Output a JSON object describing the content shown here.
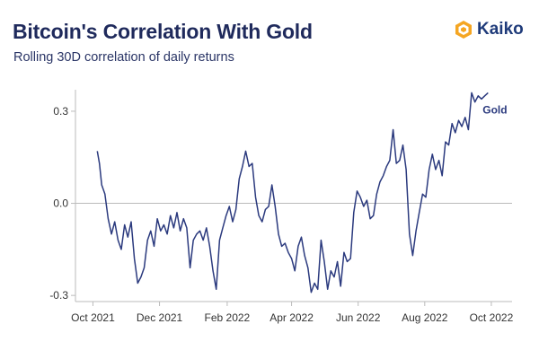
{
  "header": {
    "title": "Bitcoin's Correlation With Gold",
    "subtitle": "Rolling 30D correlation of daily returns"
  },
  "brand": {
    "name": "Kaiko",
    "logo_icon": "kaiko-logo-icon",
    "logo_color": "#f5a623"
  },
  "colors": {
    "line": "#2b3a7e",
    "axis": "#bbbbbb",
    "zero_line": "#bbbbbb"
  },
  "chart_data": {
    "type": "line",
    "title": "Bitcoin's Correlation With Gold",
    "subtitle": "Rolling 30D correlation of daily returns",
    "xlabel": "",
    "ylabel": "",
    "xlim": [
      "2021-09-15",
      "2022-10-20"
    ],
    "ylim": [
      -0.32,
      0.37
    ],
    "x_ticks": [
      {
        "date": "2021-10-01",
        "label": "Oct 2021"
      },
      {
        "date": "2021-12-01",
        "label": "Dec 2021"
      },
      {
        "date": "2022-02-01",
        "label": "Feb 2022"
      },
      {
        "date": "2022-04-01",
        "label": "Apr 2022"
      },
      {
        "date": "2022-06-01",
        "label": "Jun 2022"
      },
      {
        "date": "2022-08-01",
        "label": "Aug 2022"
      },
      {
        "date": "2022-10-01",
        "label": "Oct 2022"
      }
    ],
    "y_ticks": [
      {
        "value": 0.3,
        "label": "0.3"
      },
      {
        "value": 0.0,
        "label": "0.0"
      },
      {
        "value": -0.3,
        "label": "-0.3"
      }
    ],
    "grid": false,
    "series": [
      {
        "name": "Gold",
        "label_position": "end",
        "points": [
          {
            "x": "2021-10-05",
            "y": 0.17
          },
          {
            "x": "2021-10-07",
            "y": 0.13
          },
          {
            "x": "2021-10-09",
            "y": 0.06
          },
          {
            "x": "2021-10-12",
            "y": 0.03
          },
          {
            "x": "2021-10-15",
            "y": -0.05
          },
          {
            "x": "2021-10-18",
            "y": -0.1
          },
          {
            "x": "2021-10-21",
            "y": -0.06
          },
          {
            "x": "2021-10-24",
            "y": -0.12
          },
          {
            "x": "2021-10-27",
            "y": -0.15
          },
          {
            "x": "2021-10-30",
            "y": -0.07
          },
          {
            "x": "2021-11-02",
            "y": -0.11
          },
          {
            "x": "2021-11-05",
            "y": -0.06
          },
          {
            "x": "2021-11-08",
            "y": -0.18
          },
          {
            "x": "2021-11-11",
            "y": -0.26
          },
          {
            "x": "2021-11-14",
            "y": -0.24
          },
          {
            "x": "2021-11-17",
            "y": -0.21
          },
          {
            "x": "2021-11-20",
            "y": -0.12
          },
          {
            "x": "2021-11-23",
            "y": -0.09
          },
          {
            "x": "2021-11-26",
            "y": -0.14
          },
          {
            "x": "2021-11-29",
            "y": -0.05
          },
          {
            "x": "2021-12-02",
            "y": -0.09
          },
          {
            "x": "2021-12-05",
            "y": -0.07
          },
          {
            "x": "2021-12-08",
            "y": -0.1
          },
          {
            "x": "2021-12-11",
            "y": -0.04
          },
          {
            "x": "2021-12-14",
            "y": -0.08
          },
          {
            "x": "2021-12-17",
            "y": -0.03
          },
          {
            "x": "2021-12-20",
            "y": -0.09
          },
          {
            "x": "2021-12-23",
            "y": -0.05
          },
          {
            "x": "2021-12-26",
            "y": -0.08
          },
          {
            "x": "2021-12-29",
            "y": -0.21
          },
          {
            "x": "2022-01-01",
            "y": -0.12
          },
          {
            "x": "2022-01-04",
            "y": -0.1
          },
          {
            "x": "2022-01-07",
            "y": -0.09
          },
          {
            "x": "2022-01-10",
            "y": -0.12
          },
          {
            "x": "2022-01-13",
            "y": -0.08
          },
          {
            "x": "2022-01-16",
            "y": -0.14
          },
          {
            "x": "2022-01-19",
            "y": -0.22
          },
          {
            "x": "2022-01-22",
            "y": -0.28
          },
          {
            "x": "2022-01-25",
            "y": -0.12
          },
          {
            "x": "2022-01-28",
            "y": -0.08
          },
          {
            "x": "2022-01-31",
            "y": -0.04
          },
          {
            "x": "2022-02-03",
            "y": -0.01
          },
          {
            "x": "2022-02-06",
            "y": -0.06
          },
          {
            "x": "2022-02-09",
            "y": -0.02
          },
          {
            "x": "2022-02-12",
            "y": 0.08
          },
          {
            "x": "2022-02-15",
            "y": 0.12
          },
          {
            "x": "2022-02-18",
            "y": 0.17
          },
          {
            "x": "2022-02-21",
            "y": 0.12
          },
          {
            "x": "2022-02-24",
            "y": 0.13
          },
          {
            "x": "2022-02-27",
            "y": 0.02
          },
          {
            "x": "2022-03-02",
            "y": -0.04
          },
          {
            "x": "2022-03-05",
            "y": -0.06
          },
          {
            "x": "2022-03-08",
            "y": -0.02
          },
          {
            "x": "2022-03-11",
            "y": -0.01
          },
          {
            "x": "2022-03-14",
            "y": 0.06
          },
          {
            "x": "2022-03-17",
            "y": -0.01
          },
          {
            "x": "2022-03-20",
            "y": -0.1
          },
          {
            "x": "2022-03-23",
            "y": -0.14
          },
          {
            "x": "2022-03-26",
            "y": -0.13
          },
          {
            "x": "2022-03-29",
            "y": -0.16
          },
          {
            "x": "2022-04-01",
            "y": -0.18
          },
          {
            "x": "2022-04-04",
            "y": -0.22
          },
          {
            "x": "2022-04-07",
            "y": -0.14
          },
          {
            "x": "2022-04-10",
            "y": -0.11
          },
          {
            "x": "2022-04-13",
            "y": -0.17
          },
          {
            "x": "2022-04-16",
            "y": -0.21
          },
          {
            "x": "2022-04-19",
            "y": -0.29
          },
          {
            "x": "2022-04-22",
            "y": -0.26
          },
          {
            "x": "2022-04-25",
            "y": -0.28
          },
          {
            "x": "2022-04-28",
            "y": -0.12
          },
          {
            "x": "2022-05-01",
            "y": -0.19
          },
          {
            "x": "2022-05-04",
            "y": -0.28
          },
          {
            "x": "2022-05-07",
            "y": -0.22
          },
          {
            "x": "2022-05-10",
            "y": -0.24
          },
          {
            "x": "2022-05-13",
            "y": -0.19
          },
          {
            "x": "2022-05-16",
            "y": -0.27
          },
          {
            "x": "2022-05-19",
            "y": -0.16
          },
          {
            "x": "2022-05-22",
            "y": -0.19
          },
          {
            "x": "2022-05-25",
            "y": -0.18
          },
          {
            "x": "2022-05-28",
            "y": -0.03
          },
          {
            "x": "2022-05-31",
            "y": 0.04
          },
          {
            "x": "2022-06-03",
            "y": 0.02
          },
          {
            "x": "2022-06-06",
            "y": -0.01
          },
          {
            "x": "2022-06-09",
            "y": 0.01
          },
          {
            "x": "2022-06-12",
            "y": -0.05
          },
          {
            "x": "2022-06-15",
            "y": -0.04
          },
          {
            "x": "2022-06-18",
            "y": 0.03
          },
          {
            "x": "2022-06-21",
            "y": 0.07
          },
          {
            "x": "2022-06-24",
            "y": 0.09
          },
          {
            "x": "2022-06-27",
            "y": 0.12
          },
          {
            "x": "2022-06-30",
            "y": 0.14
          },
          {
            "x": "2022-07-03",
            "y": 0.24
          },
          {
            "x": "2022-07-06",
            "y": 0.13
          },
          {
            "x": "2022-07-09",
            "y": 0.14
          },
          {
            "x": "2022-07-12",
            "y": 0.19
          },
          {
            "x": "2022-07-15",
            "y": 0.11
          },
          {
            "x": "2022-07-18",
            "y": -0.1
          },
          {
            "x": "2022-07-21",
            "y": -0.17
          },
          {
            "x": "2022-07-24",
            "y": -0.09
          },
          {
            "x": "2022-07-27",
            "y": -0.03
          },
          {
            "x": "2022-07-30",
            "y": 0.03
          },
          {
            "x": "2022-08-02",
            "y": 0.02
          },
          {
            "x": "2022-08-05",
            "y": 0.11
          },
          {
            "x": "2022-08-08",
            "y": 0.16
          },
          {
            "x": "2022-08-11",
            "y": 0.11
          },
          {
            "x": "2022-08-14",
            "y": 0.14
          },
          {
            "x": "2022-08-17",
            "y": 0.09
          },
          {
            "x": "2022-08-20",
            "y": 0.2
          },
          {
            "x": "2022-08-23",
            "y": 0.19
          },
          {
            "x": "2022-08-26",
            "y": 0.26
          },
          {
            "x": "2022-08-29",
            "y": 0.23
          },
          {
            "x": "2022-09-01",
            "y": 0.27
          },
          {
            "x": "2022-09-04",
            "y": 0.25
          },
          {
            "x": "2022-09-07",
            "y": 0.28
          },
          {
            "x": "2022-09-10",
            "y": 0.24
          },
          {
            "x": "2022-09-13",
            "y": 0.36
          },
          {
            "x": "2022-09-16",
            "y": 0.33
          },
          {
            "x": "2022-09-19",
            "y": 0.35
          },
          {
            "x": "2022-09-22",
            "y": 0.34
          },
          {
            "x": "2022-09-25",
            "y": 0.35
          },
          {
            "x": "2022-09-28",
            "y": 0.36
          }
        ]
      }
    ]
  }
}
